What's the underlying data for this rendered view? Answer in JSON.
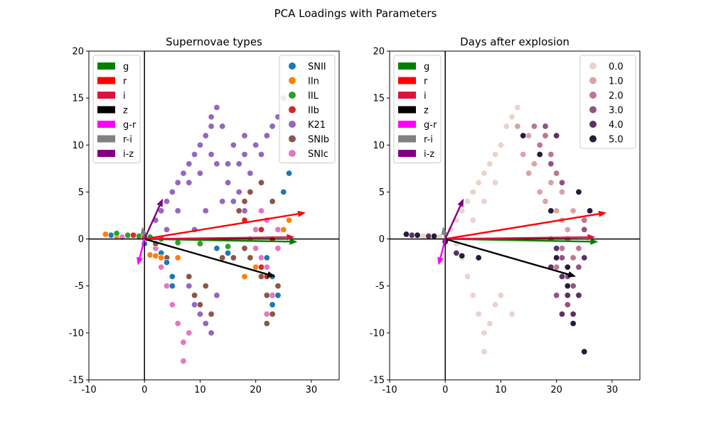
{
  "figure": {
    "suptitle": "PCA Loadings with Parameters"
  },
  "chart_data": [
    {
      "type": "scatter",
      "title": "Supernovae types",
      "xlabel": "",
      "ylabel": "",
      "xlim": [
        -10,
        35
      ],
      "ylim": [
        -15,
        20
      ],
      "xticks": [
        -10,
        0,
        10,
        20,
        30
      ],
      "yticks": [
        -15,
        -10,
        -5,
        0,
        5,
        10,
        15,
        20
      ],
      "grid": false,
      "hue_legend_position": "top-right",
      "vector_legend_position": "top-left",
      "series": [
        {
          "name": "SNII",
          "color": "#1f77b4"
        },
        {
          "name": "IIn",
          "color": "#ff7f0e"
        },
        {
          "name": "IIL",
          "color": "#2ca02c"
        },
        {
          "name": "IIb",
          "color": "#d62728"
        },
        {
          "name": "K21",
          "color": "#9467bd"
        },
        {
          "name": "SNIb",
          "color": "#8c564b"
        },
        {
          "name": "SNIc",
          "color": "#e377c2"
        }
      ],
      "clusters": [
        {
          "series": "K21",
          "points": [
            [
              2,
              2
            ],
            [
              3,
              3
            ],
            [
              4,
              4
            ],
            [
              5,
              5
            ],
            [
              6,
              6
            ],
            [
              7,
              7
            ],
            [
              8,
              8
            ],
            [
              9,
              9
            ],
            [
              10,
              10
            ],
            [
              11,
              11
            ],
            [
              12,
              12
            ],
            [
              12,
              13
            ],
            [
              13,
              14
            ],
            [
              14,
              12
            ],
            [
              16,
              10
            ],
            [
              18,
              9
            ],
            [
              20,
              10
            ],
            [
              22,
              11
            ],
            [
              23,
              12
            ],
            [
              24,
              13
            ],
            [
              25,
              15
            ],
            [
              17,
              8
            ],
            [
              19,
              7
            ],
            [
              15,
              6
            ],
            [
              14,
              4
            ],
            [
              11,
              3
            ],
            [
              9,
              1
            ],
            [
              4,
              1
            ],
            [
              6,
              3
            ],
            [
              8,
              6
            ],
            [
              10,
              7
            ],
            [
              12,
              9
            ],
            [
              13,
              8
            ],
            [
              15,
              8
            ],
            [
              18,
              11
            ],
            [
              21,
              9
            ],
            [
              16,
              4
            ],
            [
              17,
              5
            ],
            [
              18,
              3
            ],
            [
              8,
              -5
            ],
            [
              9,
              -7
            ],
            [
              10,
              -8
            ],
            [
              11,
              -9
            ],
            [
              12,
              -10
            ],
            [
              13,
              -6
            ]
          ]
        },
        {
          "series": "SNIc",
          "points": [
            [
              -4,
              0.2
            ],
            [
              -2,
              0.3
            ],
            [
              0,
              -0.3
            ],
            [
              2,
              -1
            ],
            [
              3,
              -3
            ],
            [
              4,
              -5
            ],
            [
              5,
              -7
            ],
            [
              6,
              -9
            ],
            [
              7,
              -11
            ],
            [
              7,
              -13
            ],
            [
              8,
              -10
            ],
            [
              20,
              -1
            ],
            [
              21,
              -2
            ],
            [
              22,
              -3
            ],
            [
              23,
              -4
            ],
            [
              20,
              1
            ],
            [
              22,
              2
            ],
            [
              24,
              1
            ],
            [
              21,
              3
            ],
            [
              23,
              -6
            ],
            [
              22,
              -8
            ],
            [
              19,
              0
            ],
            [
              24,
              -1
            ]
          ]
        },
        {
          "series": "SNIb",
          "points": [
            [
              18,
              -1
            ],
            [
              19,
              -2
            ],
            [
              20,
              -3
            ],
            [
              21,
              -4
            ],
            [
              22,
              -6
            ],
            [
              23,
              -8
            ],
            [
              22,
              -9
            ],
            [
              24,
              -5
            ],
            [
              9,
              -6
            ],
            [
              10,
              -7
            ],
            [
              11,
              -5
            ],
            [
              12,
              -8
            ],
            [
              8,
              -4
            ],
            [
              14,
              -2
            ],
            [
              16,
              -2
            ],
            [
              17,
              3
            ],
            [
              18,
              4
            ],
            [
              19,
              5
            ],
            [
              21,
              6
            ],
            [
              23,
              4
            ],
            [
              4,
              -2
            ],
            [
              6,
              -2
            ],
            [
              2,
              -0.5
            ],
            [
              -1,
              0.3
            ]
          ]
        },
        {
          "series": "SNII",
          "points": [
            [
              -6,
              0.4
            ],
            [
              -3,
              0.3
            ],
            [
              0,
              -0.5
            ],
            [
              3,
              -1.5
            ],
            [
              4,
              -2.5
            ],
            [
              5,
              -4
            ],
            [
              5,
              -5
            ],
            [
              13,
              -1
            ],
            [
              15,
              -1.5
            ],
            [
              22,
              -2
            ],
            [
              23,
              -4
            ],
            [
              24,
              -6
            ],
            [
              25,
              5
            ],
            [
              26,
              7
            ],
            [
              23,
              -7
            ]
          ]
        },
        {
          "series": "IIn",
          "points": [
            [
              -7,
              0.5
            ],
            [
              -5,
              0.3
            ],
            [
              1,
              -1.7
            ],
            [
              2,
              -1.8
            ],
            [
              3,
              -2
            ],
            [
              6,
              -2
            ],
            [
              18,
              -4
            ],
            [
              20,
              -3
            ],
            [
              25,
              1
            ],
            [
              26,
              2
            ]
          ]
        },
        {
          "series": "IIL",
          "points": [
            [
              -5,
              0.6
            ],
            [
              -3,
              0.4
            ],
            [
              -1,
              0.3
            ],
            [
              1,
              0.2
            ],
            [
              3,
              0
            ],
            [
              6,
              -0.4
            ],
            [
              10,
              -0.5
            ],
            [
              15,
              -0.8
            ]
          ]
        },
        {
          "series": "IIb",
          "points": [
            [
              0,
              0.2
            ],
            [
              -2,
              0.4
            ],
            [
              18,
              2
            ],
            [
              21,
              1
            ],
            [
              23,
              0
            ],
            [
              21,
              -3
            ],
            [
              22,
              -4
            ]
          ]
        }
      ],
      "vectors": [
        {
          "name": "g",
          "color": "#008000",
          "dx": 27.5,
          "dy": -0.3
        },
        {
          "name": "r",
          "color": "#ff0000",
          "dx": 29.0,
          "dy": 2.8
        },
        {
          "name": "i",
          "color": "#dc143c",
          "dx": 27.0,
          "dy": 0.2
        },
        {
          "name": "z",
          "color": "#000000",
          "dx": 23.5,
          "dy": -4.0
        },
        {
          "name": "g-r",
          "color": "#ff00ff",
          "dx": -1.2,
          "dy": -2.8
        },
        {
          "name": "r-i",
          "color": "#808080",
          "dx": -0.4,
          "dy": 1.3
        },
        {
          "name": "i-z",
          "color": "#800080",
          "dx": 3.3,
          "dy": 4.3
        }
      ]
    },
    {
      "type": "scatter",
      "title": "Days after explosion",
      "xlabel": "",
      "ylabel": "",
      "xlim": [
        -10,
        35
      ],
      "ylim": [
        -15,
        20
      ],
      "xticks": [
        -10,
        0,
        10,
        20,
        30
      ],
      "yticks": [
        -15,
        -10,
        -5,
        0,
        5,
        10,
        15,
        20
      ],
      "grid": false,
      "hue_legend_position": "top-right",
      "vector_legend_position": "top-left",
      "series": [
        {
          "name": "0.0",
          "color": "#ebd2cc"
        },
        {
          "name": "1.0",
          "color": "#d9a4a6"
        },
        {
          "name": "2.0",
          "color": "#bd7690"
        },
        {
          "name": "3.0",
          "color": "#935482"
        },
        {
          "name": "4.0",
          "color": "#5b3162"
        },
        {
          "name": "5.0",
          "color": "#2a1a3b"
        }
      ],
      "clusters": [
        {
          "series": "0.0",
          "points": [
            [
              -4,
              0.3
            ],
            [
              -1,
              0.2
            ],
            [
              1,
              1
            ],
            [
              2,
              2
            ],
            [
              3,
              3
            ],
            [
              4,
              4
            ],
            [
              5,
              5
            ],
            [
              6,
              6
            ],
            [
              7,
              7
            ],
            [
              8,
              8
            ],
            [
              9,
              9
            ],
            [
              10,
              10
            ],
            [
              11,
              12
            ],
            [
              12,
              13
            ],
            [
              13,
              14
            ],
            [
              3,
              -2
            ],
            [
              4,
              -4
            ],
            [
              5,
              -6
            ],
            [
              6,
              -8
            ],
            [
              7,
              -10
            ],
            [
              7,
              -12
            ],
            [
              8,
              -9
            ],
            [
              9,
              -7
            ],
            [
              10,
              -6
            ],
            [
              12,
              -8
            ],
            [
              2,
              -0.5
            ],
            [
              5,
              2
            ],
            [
              7,
              4
            ],
            [
              9,
              6
            ]
          ]
        },
        {
          "series": "1.0",
          "points": [
            [
              14,
              9
            ],
            [
              15,
              7
            ],
            [
              16,
              8
            ],
            [
              17,
              5
            ],
            [
              18,
              4
            ],
            [
              20,
              3
            ],
            [
              21,
              2
            ],
            [
              22,
              1
            ],
            [
              23,
              3
            ],
            [
              19,
              6
            ],
            [
              21,
              5
            ],
            [
              15,
              11
            ],
            [
              13,
              12
            ]
          ]
        },
        {
          "series": "2.0",
          "points": [
            [
              17,
              10
            ],
            [
              18,
              11
            ],
            [
              19,
              9
            ],
            [
              20,
              7
            ],
            [
              22,
              0
            ],
            [
              23,
              -2
            ],
            [
              24,
              -1
            ],
            [
              21,
              -1
            ],
            [
              19,
              0
            ],
            [
              25,
              2
            ],
            [
              20,
              -3
            ],
            [
              16,
              12
            ]
          ]
        },
        {
          "series": "3.0",
          "points": [
            [
              18,
              12
            ],
            [
              19,
              8
            ],
            [
              21,
              -2
            ],
            [
              22,
              -4
            ],
            [
              23,
              -5
            ],
            [
              20,
              -6
            ],
            [
              24,
              -3
            ],
            [
              22,
              -7
            ],
            [
              25,
              1
            ],
            [
              21,
              6
            ]
          ]
        },
        {
          "series": "4.0",
          "points": [
            [
              20,
              11
            ],
            [
              20,
              -1
            ],
            [
              21,
              -4
            ],
            [
              22,
              -6
            ],
            [
              23,
              -8
            ],
            [
              24,
              -6
            ],
            [
              21,
              -8
            ],
            [
              25,
              -2
            ],
            [
              19,
              -3
            ],
            [
              -6,
              0.4
            ],
            [
              -3,
              0.3
            ],
            [
              2,
              -1.5
            ]
          ]
        },
        {
          "series": "5.0",
          "points": [
            [
              -7,
              0.5
            ],
            [
              -5,
              0.4
            ],
            [
              -2,
              0.3
            ],
            [
              0,
              -0.3
            ],
            [
              3,
              -1.8
            ],
            [
              6,
              -2
            ],
            [
              14,
              11
            ],
            [
              17,
              9
            ],
            [
              19,
              3
            ],
            [
              20,
              -2
            ],
            [
              22,
              -3
            ],
            [
              23,
              -9
            ],
            [
              25,
              -12
            ],
            [
              26,
              3
            ],
            [
              24,
              5
            ],
            [
              22,
              -5
            ]
          ]
        }
      ],
      "vectors": [
        {
          "name": "g",
          "color": "#008000",
          "dx": 27.5,
          "dy": -0.3
        },
        {
          "name": "r",
          "color": "#ff0000",
          "dx": 29.0,
          "dy": 2.8
        },
        {
          "name": "i",
          "color": "#dc143c",
          "dx": 27.0,
          "dy": 0.2
        },
        {
          "name": "z",
          "color": "#000000",
          "dx": 23.5,
          "dy": -4.0
        },
        {
          "name": "g-r",
          "color": "#ff00ff",
          "dx": -1.2,
          "dy": -2.8
        },
        {
          "name": "r-i",
          "color": "#808080",
          "dx": -0.4,
          "dy": 1.3
        },
        {
          "name": "i-z",
          "color": "#800080",
          "dx": 3.3,
          "dy": 4.3
        }
      ]
    }
  ]
}
